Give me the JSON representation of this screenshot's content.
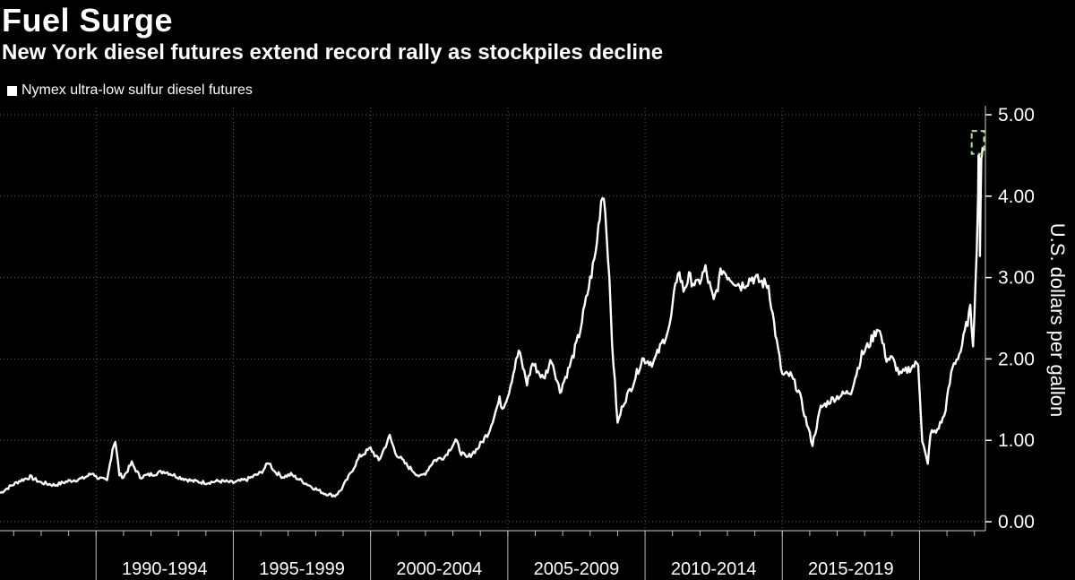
{
  "chart_data": {
    "type": "line",
    "title": "Fuel Surge",
    "subtitle": "New York diesel futures extend record rally as stockpiles decline",
    "ylabel": "U.S. dollars per gallon",
    "xlabel": "",
    "ylim": [
      0,
      5.0
    ],
    "xlim": [
      1986.5,
      2022.4
    ],
    "yticks": [
      "0.00",
      "1.00",
      "2.00",
      "3.00",
      "4.00",
      "5.00"
    ],
    "ytick_values": [
      0,
      1,
      2,
      3,
      4,
      5
    ],
    "x_period_labels": [
      "1990-1994",
      "1995-1999",
      "2000-2004",
      "2005-2009",
      "2010-2014",
      "2015-2019"
    ],
    "x_period_centers": [
      1992.5,
      1997.5,
      2002.5,
      2007.5,
      2012.5,
      2017.5
    ],
    "x_period_bounds": [
      1990,
      1995,
      2000,
      2005,
      2010,
      2015,
      2020
    ],
    "grid": true,
    "legend": "top-left",
    "colors": {
      "line": "#ffffff",
      "highlight": "#b7e08a",
      "background": "#000000"
    },
    "highlight_box": {
      "x_range": [
        2021.9,
        2022.35
      ],
      "y_range": [
        4.52,
        4.8
      ]
    },
    "series": [
      {
        "name": "Nymex ultra-low sulfur diesel futures",
        "x": [
          1986.5,
          1986.8,
          1987.2,
          1987.6,
          1988.0,
          1988.5,
          1989.0,
          1989.5,
          1989.9,
          1990.0,
          1990.4,
          1990.6,
          1990.7,
          1990.75,
          1990.85,
          1991.0,
          1991.3,
          1991.6,
          1992.0,
          1992.5,
          1993.0,
          1993.5,
          1994.0,
          1994.5,
          1995.0,
          1995.5,
          1996.0,
          1996.3,
          1996.5,
          1996.8,
          1997.1,
          1997.5,
          1997.9,
          1998.3,
          1998.7,
          1998.9,
          1999.2,
          1999.6,
          2000.0,
          2000.3,
          2000.7,
          2000.9,
          2001.3,
          2001.8,
          2002.0,
          2002.3,
          2002.7,
          2003.1,
          2003.3,
          2003.5,
          2003.9,
          2004.3,
          2004.7,
          2004.8,
          2005.0,
          2005.4,
          2005.7,
          2005.9,
          2006.3,
          2006.6,
          2006.9,
          2007.3,
          2007.6,
          2007.9,
          2008.2,
          2008.4,
          2008.5,
          2008.65,
          2008.8,
          2009.0,
          2009.2,
          2009.5,
          2009.9,
          2010.3,
          2010.5,
          2010.9,
          2011.2,
          2011.4,
          2011.6,
          2011.9,
          2012.2,
          2012.5,
          2012.8,
          2013.1,
          2013.5,
          2013.9,
          2014.2,
          2014.5,
          2014.8,
          2015.0,
          2015.3,
          2015.6,
          2015.9,
          2016.1,
          2016.4,
          2016.8,
          2017.1,
          2017.5,
          2017.9,
          2018.2,
          2018.5,
          2018.8,
          2019.0,
          2019.3,
          2019.7,
          2019.95,
          2020.1,
          2020.3,
          2020.4,
          2020.6,
          2020.9,
          2021.2,
          2021.5,
          2021.7,
          2021.85,
          2021.95,
          2022.05,
          2022.12,
          2022.15,
          2022.18,
          2022.2,
          2022.25,
          2022.3
        ],
        "values": [
          0.35,
          0.42,
          0.5,
          0.55,
          0.48,
          0.45,
          0.5,
          0.53,
          0.6,
          0.55,
          0.5,
          0.9,
          1.0,
          0.85,
          0.58,
          0.55,
          0.72,
          0.55,
          0.58,
          0.62,
          0.55,
          0.5,
          0.48,
          0.5,
          0.48,
          0.52,
          0.6,
          0.73,
          0.62,
          0.55,
          0.58,
          0.5,
          0.42,
          0.35,
          0.32,
          0.38,
          0.55,
          0.8,
          0.9,
          0.75,
          1.05,
          0.85,
          0.7,
          0.55,
          0.6,
          0.75,
          0.8,
          1.0,
          0.85,
          0.78,
          0.9,
          1.1,
          1.5,
          1.4,
          1.55,
          2.1,
          1.7,
          1.95,
          1.75,
          2.0,
          1.6,
          1.95,
          2.3,
          2.8,
          3.3,
          3.95,
          4.05,
          3.3,
          2.2,
          1.2,
          1.45,
          1.65,
          2.0,
          1.95,
          2.1,
          2.4,
          3.1,
          2.85,
          3.0,
          2.9,
          3.1,
          2.7,
          3.1,
          3.0,
          2.9,
          3.0,
          2.95,
          2.9,
          2.2,
          1.8,
          1.8,
          1.6,
          1.2,
          0.95,
          1.4,
          1.5,
          1.55,
          1.6,
          2.05,
          2.2,
          2.4,
          2.0,
          2.0,
          1.8,
          1.9,
          1.95,
          1.0,
          0.7,
          1.1,
          1.1,
          1.3,
          1.9,
          2.1,
          2.4,
          2.6,
          2.2,
          3.0,
          3.8,
          4.4,
          4.5,
          3.3,
          4.45,
          4.6
        ]
      }
    ]
  }
}
